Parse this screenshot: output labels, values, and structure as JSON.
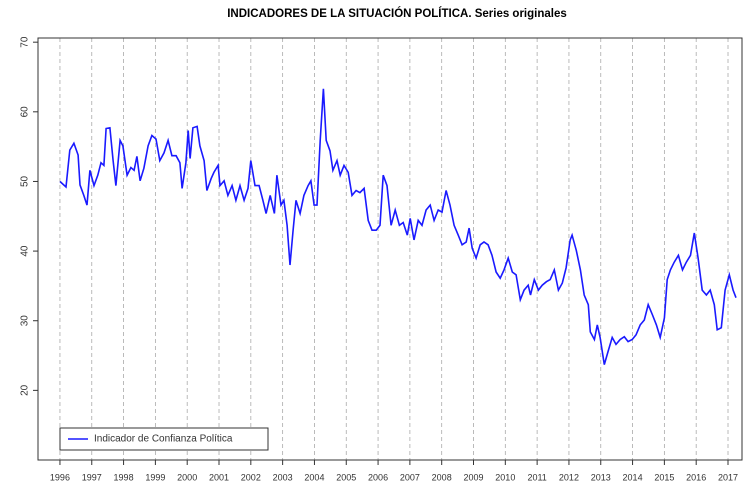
{
  "chart_data": {
    "type": "line",
    "title": "INDICADORES DE LA SITUACIÓN POLÍTICA. Series originales",
    "x": [
      1996.0,
      1996.19,
      1996.31,
      1996.44,
      1996.57,
      1996.63,
      1996.75,
      1996.85,
      1996.94,
      1997.07,
      1997.19,
      1997.29,
      1997.38,
      1997.45,
      1997.57,
      1997.67,
      1997.76,
      1997.89,
      1997.98,
      1998.11,
      1998.23,
      1998.33,
      1998.42,
      1998.52,
      1998.64,
      1998.77,
      1998.89,
      1999.02,
      1999.14,
      1999.27,
      1999.4,
      1999.52,
      1999.65,
      1999.77,
      1999.84,
      1999.96,
      2000.03,
      2000.09,
      2000.18,
      2000.31,
      2000.4,
      2000.53,
      2000.62,
      2000.75,
      2000.84,
      2000.97,
      2001.03,
      2001.16,
      2001.28,
      2001.41,
      2001.53,
      2001.66,
      2001.79,
      2001.91,
      2002.0,
      2002.13,
      2002.26,
      2002.38,
      2002.48,
      2002.61,
      2002.74,
      2002.82,
      2002.95,
      2003.04,
      2003.14,
      2003.23,
      2003.33,
      2003.42,
      2003.55,
      2003.67,
      2003.8,
      2003.89,
      2003.99,
      2004.08,
      2004.18,
      2004.28,
      2004.37,
      2004.49,
      2004.58,
      2004.71,
      2004.81,
      2004.93,
      2005.06,
      2005.18,
      2005.31,
      2005.43,
      2005.56,
      2005.69,
      2005.81,
      2005.94,
      2006.06,
      2006.16,
      2006.28,
      2006.41,
      2006.54,
      2006.67,
      2006.79,
      2006.92,
      2007.01,
      2007.13,
      2007.26,
      2007.38,
      2007.51,
      2007.64,
      2007.76,
      2007.89,
      2008.01,
      2008.14,
      2008.26,
      2008.39,
      2008.52,
      2008.64,
      2008.77,
      2008.86,
      2008.96,
      2009.08,
      2009.21,
      2009.33,
      2009.46,
      2009.58,
      2009.71,
      2009.84,
      2009.96,
      2010.09,
      2010.22,
      2010.34,
      2010.47,
      2010.59,
      2010.72,
      2010.79,
      2010.91,
      2011.04,
      2011.16,
      2011.29,
      2011.41,
      2011.54,
      2011.67,
      2011.79,
      2011.91,
      2012.04,
      2012.1,
      2012.23,
      2012.36,
      2012.48,
      2012.61,
      2012.67,
      2012.8,
      2012.89,
      2012.98,
      2013.11,
      2013.23,
      2013.36,
      2013.48,
      2013.61,
      2013.74,
      2013.86,
      2013.99,
      2014.11,
      2014.24,
      2014.37,
      2014.49,
      2014.62,
      2014.75,
      2014.87,
      2015.0,
      2015.09,
      2015.19,
      2015.31,
      2015.44,
      2015.57,
      2015.69,
      2015.82,
      2015.94,
      2016.06,
      2016.19,
      2016.32,
      2016.44,
      2016.57,
      2016.66,
      2016.79,
      2016.91,
      2017.04,
      2017.16,
      2017.25
    ],
    "series": [
      {
        "name": "Indicador de Confianza Política",
        "color": "#1a1aff",
        "values": [
          50,
          49.2,
          54.5,
          55.5,
          53.8,
          49.5,
          48,
          46.6,
          51.6,
          49.4,
          50.9,
          52.7,
          52.3,
          57.6,
          57.7,
          53,
          49.4,
          55.9,
          55.1,
          50.9,
          52,
          51.6,
          53.6,
          50.1,
          51.9,
          55.1,
          56.6,
          56.1,
          53,
          54.1,
          55.9,
          53.7,
          53.7,
          52.7,
          49,
          52.7,
          57.3,
          53.3,
          57.7,
          57.9,
          55.1,
          53,
          48.7,
          50.4,
          51.3,
          52.3,
          49.4,
          50.1,
          48,
          49.4,
          47.3,
          49.4,
          47.3,
          49,
          53,
          49.4,
          49.4,
          47.3,
          45.4,
          48,
          45.4,
          50.9,
          46.6,
          47.3,
          43.7,
          38,
          43,
          47.3,
          45.4,
          48,
          49.4,
          50.1,
          46.6,
          46.6,
          55.9,
          63.3,
          55.9,
          54.4,
          51.6,
          53,
          50.9,
          52.3,
          51.3,
          48,
          48.7,
          48.4,
          49,
          44.4,
          43,
          43,
          43.7,
          50.9,
          49.4,
          43.7,
          45.9,
          43.7,
          44.1,
          42.3,
          44.7,
          41.6,
          44.4,
          43.7,
          45.9,
          46.6,
          44.4,
          45.9,
          45.6,
          48.7,
          46.6,
          43.7,
          42.3,
          40.9,
          41.3,
          43.3,
          40.4,
          39,
          40.9,
          41.3,
          40.9,
          39.4,
          37,
          36.1,
          37.3,
          39,
          37,
          36.6,
          33,
          34.4,
          35.1,
          33.7,
          35.9,
          34.4,
          35.1,
          35.6,
          35.9,
          37.3,
          34.4,
          35.4,
          37.6,
          41.6,
          42.3,
          40.1,
          37.3,
          33.7,
          32.3,
          28.4,
          27.3,
          29.4,
          27.6,
          23.7,
          25.6,
          27.6,
          26.6,
          27.3,
          27.7,
          27,
          27.3,
          28,
          29.4,
          30.1,
          32.3,
          30.9,
          29.4,
          27.6,
          30.4,
          35.9,
          37.3,
          38.4,
          39.4,
          37.3,
          38.4,
          39.4,
          42.6,
          39,
          34.4,
          33.7,
          34.4,
          32.3,
          28.7,
          29,
          34.4,
          36.6,
          34.4,
          33.3
        ]
      }
    ],
    "xlim": [
      1995.31,
      2017.44
    ],
    "xticks": [
      1996,
      1997,
      1998,
      1999,
      2000,
      2001,
      2002,
      2003,
      2004,
      2005,
      2006,
      2007,
      2008,
      2009,
      2010,
      2011,
      2012,
      2013,
      2014,
      2015,
      2016,
      2017
    ],
    "ylim": [
      10,
      70.6
    ],
    "yticks": [
      20,
      30,
      40,
      50,
      60,
      70
    ],
    "grid": "x",
    "legend": "bottom-left"
  }
}
